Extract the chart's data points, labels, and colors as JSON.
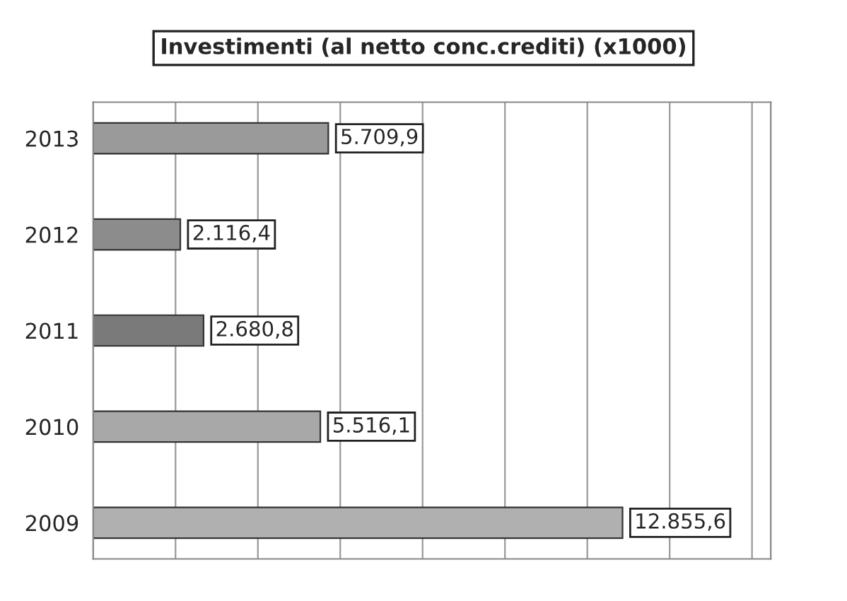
{
  "chart_data": {
    "type": "bar",
    "orientation": "horizontal",
    "title": "Investimenti (al netto conc.crediti) (x1000)",
    "categories": [
      "2013",
      "2012",
      "2011",
      "2010",
      "2009"
    ],
    "values": [
      5709.9,
      2116.4,
      2680.8,
      5516.1,
      12855.6
    ],
    "value_labels": [
      "5.709,9",
      "2.116,4",
      "2.680,8",
      "5.516,1",
      "12.855,6"
    ],
    "colors": [
      "#9a9a9a",
      "#8c8c8c",
      "#7a7a7a",
      "#a8a8a8",
      "#b0b0b0"
    ],
    "grid": "x",
    "legend": false
  }
}
